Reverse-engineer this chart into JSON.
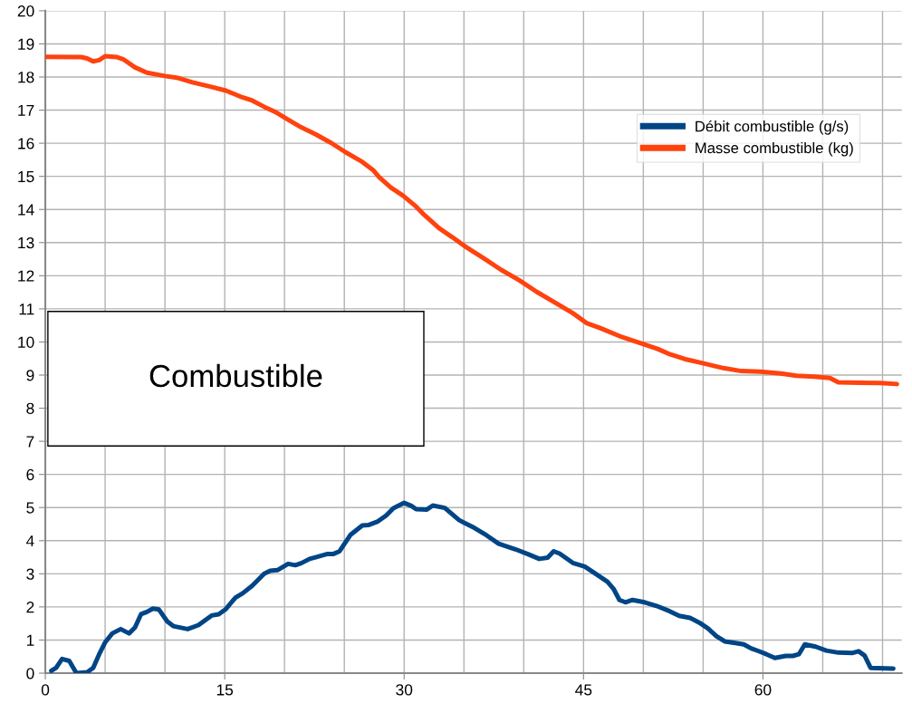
{
  "chart_data": {
    "type": "line",
    "annotations": [
      "Combustible"
    ],
    "xlim": [
      0,
      71.6
    ],
    "xticks": [
      0,
      {
        "value": 5,
        "label": null
      },
      {
        "value": 10,
        "label": null
      },
      15,
      {
        "value": 20,
        "label": null
      },
      {
        "value": 25,
        "label": null
      },
      30,
      {
        "value": 35,
        "label": null
      },
      {
        "value": 40,
        "label": null
      },
      45,
      {
        "value": 50,
        "label": null
      },
      {
        "value": 55,
        "label": null
      },
      60,
      {
        "value": 65,
        "label": null
      },
      {
        "value": 70,
        "label": null
      }
    ],
    "ylim": [
      0,
      20
    ],
    "yticks": [
      0,
      1,
      2,
      3,
      4,
      5,
      6,
      7,
      8,
      9,
      10,
      11,
      12,
      13,
      14,
      15,
      16,
      17,
      18,
      19,
      20
    ],
    "grid": true,
    "legend": "top right",
    "marker": "none",
    "line_style": "solid",
    "series": [
      {
        "name": "Débit combustible (g/s)",
        "color": "#004586",
        "x": [
          0.5,
          0.9,
          1.4,
          2.0,
          2.6,
          3.5,
          4.0,
          4.5,
          5.0,
          5.6,
          6.3,
          7.0,
          7.5,
          8.0,
          8.5,
          9.0,
          9.5,
          10.2,
          10.7,
          11.9,
          12.8,
          13.9,
          14.5,
          15.05,
          15.9,
          16.5,
          17.3,
          18.3,
          18.8,
          19.4,
          20.3,
          20.9,
          21.4,
          22.1,
          22.6,
          23.6,
          24.1,
          24.6,
          25.5,
          26.5,
          27.0,
          27.8,
          28.5,
          29.1,
          30.0,
          30.6,
          31.0,
          31.9,
          32.4,
          33.4,
          34.6,
          35.7,
          36.9,
          37.9,
          39.3,
          40.3,
          41.3,
          42.0,
          42.5,
          43.0,
          44.1,
          45.1,
          46.1,
          47.0,
          47.5,
          48.0,
          48.5,
          49.1,
          50.1,
          51.1,
          52.2,
          53.0,
          53.9,
          54.7,
          55.4,
          56.1,
          56.8,
          57.7,
          58.4,
          59.0,
          59.6,
          60.3,
          61.0,
          61.9,
          62.5,
          63.0,
          63.5,
          64.4,
          65.3,
          66.3,
          67.5,
          68.0,
          68.5,
          69.0,
          70.9
        ],
        "values": [
          0.07,
          0.16,
          0.43,
          0.37,
          0.0,
          0.03,
          0.16,
          0.57,
          0.93,
          1.2,
          1.33,
          1.2,
          1.38,
          1.78,
          1.85,
          1.95,
          1.92,
          1.56,
          1.42,
          1.33,
          1.45,
          1.74,
          1.78,
          1.92,
          2.28,
          2.41,
          2.64,
          3.0,
          3.09,
          3.11,
          3.3,
          3.26,
          3.32,
          3.45,
          3.5,
          3.6,
          3.6,
          3.68,
          4.17,
          4.46,
          4.47,
          4.58,
          4.76,
          4.98,
          5.14,
          5.05,
          4.95,
          4.94,
          5.06,
          4.99,
          4.62,
          4.42,
          4.16,
          3.91,
          3.74,
          3.6,
          3.45,
          3.49,
          3.68,
          3.61,
          3.33,
          3.22,
          2.98,
          2.76,
          2.55,
          2.21,
          2.14,
          2.21,
          2.14,
          2.03,
          1.87,
          1.73,
          1.67,
          1.52,
          1.35,
          1.12,
          0.96,
          0.91,
          0.87,
          0.75,
          0.67,
          0.57,
          0.46,
          0.52,
          0.52,
          0.57,
          0.87,
          0.8,
          0.68,
          0.62,
          0.61,
          0.66,
          0.53,
          0.16,
          0.14
        ]
      },
      {
        "name": "Masse combustible (kg)",
        "color": "#ff420e",
        "x": [
          0,
          3.0,
          3.5,
          4.0,
          4.5,
          5.0,
          6.0,
          6.5,
          7.5,
          8.5,
          10.0,
          11.1,
          12.3,
          13.8,
          15.1,
          16.3,
          17.3,
          18.3,
          19.3,
          20.4,
          21.4,
          22.6,
          23.9,
          25.1,
          26.4,
          27.4,
          27.9,
          28.9,
          29.9,
          30.9,
          31.7,
          32.9,
          34.0,
          35.2,
          36.6,
          38.1,
          39.6,
          41.1,
          42.6,
          44.1,
          45.3,
          46.4,
          48.2,
          49.9,
          51.2,
          52.2,
          53.5,
          55.2,
          56.7,
          58.2,
          59.8,
          61.5,
          62.8,
          64.3,
          65.6,
          66.3,
          68.1,
          69.8,
          71.2
        ],
        "values": [
          18.61,
          18.6,
          18.56,
          18.47,
          18.51,
          18.63,
          18.6,
          18.54,
          18.29,
          18.13,
          18.03,
          17.97,
          17.84,
          17.71,
          17.59,
          17.41,
          17.29,
          17.1,
          16.93,
          16.69,
          16.48,
          16.27,
          16.01,
          15.73,
          15.46,
          15.19,
          14.98,
          14.66,
          14.42,
          14.12,
          13.83,
          13.44,
          13.17,
          12.86,
          12.54,
          12.18,
          11.87,
          11.51,
          11.19,
          10.87,
          10.56,
          10.42,
          10.15,
          9.95,
          9.79,
          9.63,
          9.48,
          9.34,
          9.21,
          9.12,
          9.1,
          9.05,
          8.98,
          8.95,
          8.91,
          8.78,
          8.77,
          8.76,
          8.73
        ]
      }
    ]
  }
}
